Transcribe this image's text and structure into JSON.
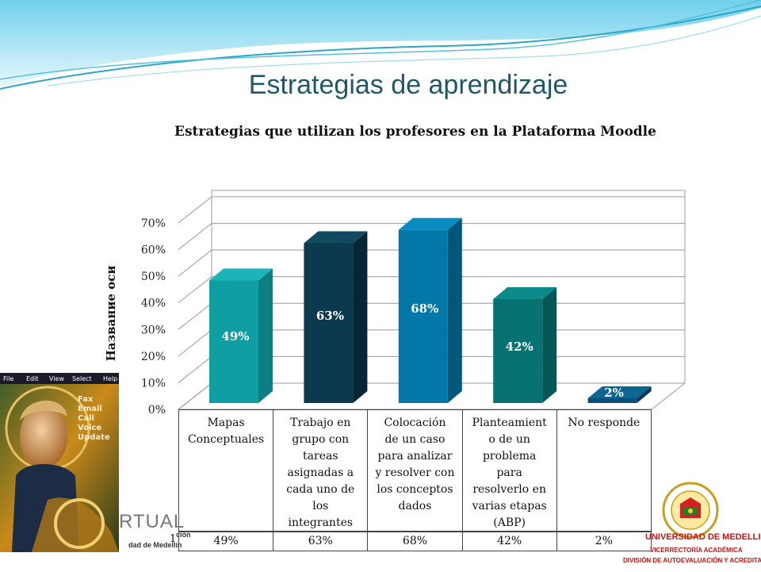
{
  "slide": {
    "title": "Estrategias de aprendizaje"
  },
  "colors": {
    "teal": "#0e9ea3",
    "dark_navy": "#0b3a4e",
    "blue": "#0277a8",
    "deep_teal": "#087272",
    "navy_blue": "#0a4f78",
    "title_color": "#215868"
  },
  "chart_data": {
    "type": "bar",
    "title": "Estrategias que utilizan los profesores en la Plataforma Moodle",
    "ylabel": "Название оси",
    "xlabel": "",
    "ylim": [
      0,
      70
    ],
    "yticks": [
      "0%",
      "10%",
      "20%",
      "30%",
      "40%",
      "50%",
      "60%",
      "70%"
    ],
    "categories": [
      "Mapas Conceptuales",
      "Trabajo en grupo con tareas asignadas a cada uno de los integrantes",
      "Colocación de un caso para analizar y resolver con los conceptos dados",
      "Planteamiento de un problema para resolverlo en varias etapas (ABP)",
      "No responde"
    ],
    "category_lines": [
      [
        "Mapas",
        "Conceptuales"
      ],
      [
        "Trabajo en",
        "grupo con",
        "tareas",
        "asignadas a",
        "cada uno de",
        "los",
        "integrantes"
      ],
      [
        "Colocación",
        "de un caso",
        "para analizar",
        "y resolver con",
        "los conceptos",
        "dados"
      ],
      [
        "Planteamient",
        "o de un",
        "problema",
        "para",
        "resolverlo en",
        "varias etapas",
        "(ABP)"
      ],
      [
        "No responde"
      ]
    ],
    "values": [
      49,
      63,
      68,
      42,
      2
    ],
    "data_labels": [
      "49%",
      "63%",
      "68%",
      "42%",
      "2%"
    ],
    "grid": true,
    "legend": "none",
    "data_table_row_label": "1"
  },
  "branding": {
    "virtual_text": "RTUAL",
    "menu_items": [
      "File",
      "Edit",
      "View",
      "Select",
      "Help"
    ],
    "side_items": [
      "Fax",
      "Email",
      "Call",
      "Voice",
      "Update"
    ],
    "virtual_sub1": "ción",
    "virtual_sub2": "dad de Medellín",
    "university": "UNIVERSIDAD DE MEDELLIN",
    "vicerrectoria": "VICERRECTORÍA ACADÉMICA",
    "division": "DIVISIÓN DE AUTOEVALUACIÓN Y ACREDITACIÓN"
  }
}
